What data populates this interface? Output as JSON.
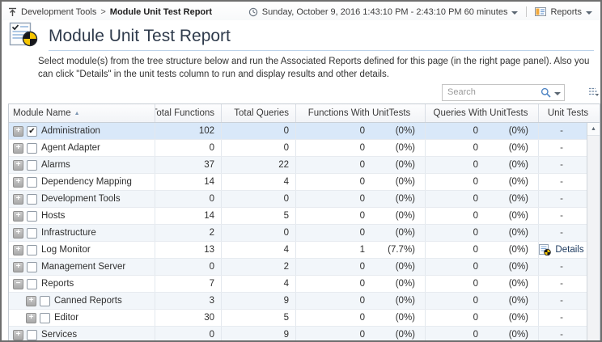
{
  "breadcrumb": {
    "parent": "Development Tools",
    "separator": ">",
    "current": "Module Unit Test Report"
  },
  "timebar": {
    "range": "Sunday, October 9, 2016 1:43:10 PM - 2:43:10 PM 60 minutes",
    "reports_label": "Reports"
  },
  "header": {
    "title": "Module Unit Test Report",
    "description": "Select module(s) from the tree structure below and run the Associated Reports defined for this page (in the right page panel). Also you can click \"Details\" in the unit tests column to run and display results and other details."
  },
  "search": {
    "placeholder": "Search"
  },
  "icons": {
    "sort_asc": "▲",
    "scroll_up": "▲",
    "check": "✔",
    "expand_collapsed": "+",
    "expand_expanded": "−",
    "dropdown": "▼"
  },
  "colors": {
    "title_color": "#2f3b4c",
    "divider_blue": "#bdd3ea",
    "selected_row": "#d9e8f9",
    "alt_row": "#f2f6fa",
    "link_color": "#1d3a5f",
    "accent_blue": "#4d83c3",
    "pie_yellow": "#f5c400",
    "pie_black": "#17181a"
  },
  "table": {
    "columns": [
      {
        "label": "Module Name",
        "align": "left",
        "sorted": "asc"
      },
      {
        "label": "Total Functions",
        "align": "right"
      },
      {
        "label": "Total Queries",
        "align": "right"
      },
      {
        "label": "Functions With UnitTests",
        "align": "center"
      },
      {
        "label": "Queries With UnitTests",
        "align": "center"
      },
      {
        "label": "Unit Tests",
        "align": "center"
      }
    ],
    "rows": [
      {
        "name": "Administration",
        "level": 0,
        "expanded": false,
        "checked": true,
        "selected": true,
        "tf": "102",
        "tq": "0",
        "fwu": "0",
        "fwu_pct": "(0%)",
        "qwu": "0",
        "qwu_pct": "(0%)",
        "unit_tests": "-",
        "details": false
      },
      {
        "name": "Agent Adapter",
        "level": 0,
        "expanded": false,
        "checked": false,
        "selected": false,
        "tf": "0",
        "tq": "0",
        "fwu": "0",
        "fwu_pct": "(0%)",
        "qwu": "0",
        "qwu_pct": "(0%)",
        "unit_tests": "-",
        "details": false
      },
      {
        "name": "Alarms",
        "level": 0,
        "expanded": false,
        "checked": false,
        "selected": false,
        "tf": "37",
        "tq": "22",
        "fwu": "0",
        "fwu_pct": "(0%)",
        "qwu": "0",
        "qwu_pct": "(0%)",
        "unit_tests": "-",
        "details": false
      },
      {
        "name": "Dependency Mapping",
        "level": 0,
        "expanded": false,
        "checked": false,
        "selected": false,
        "tf": "14",
        "tq": "4",
        "fwu": "0",
        "fwu_pct": "(0%)",
        "qwu": "0",
        "qwu_pct": "(0%)",
        "unit_tests": "-",
        "details": false
      },
      {
        "name": "Development Tools",
        "level": 0,
        "expanded": false,
        "checked": false,
        "selected": false,
        "tf": "0",
        "tq": "0",
        "fwu": "0",
        "fwu_pct": "(0%)",
        "qwu": "0",
        "qwu_pct": "(0%)",
        "unit_tests": "-",
        "details": false
      },
      {
        "name": "Hosts",
        "level": 0,
        "expanded": false,
        "checked": false,
        "selected": false,
        "tf": "14",
        "tq": "5",
        "fwu": "0",
        "fwu_pct": "(0%)",
        "qwu": "0",
        "qwu_pct": "(0%)",
        "unit_tests": "-",
        "details": false
      },
      {
        "name": "Infrastructure",
        "level": 0,
        "expanded": false,
        "checked": false,
        "selected": false,
        "tf": "2",
        "tq": "0",
        "fwu": "0",
        "fwu_pct": "(0%)",
        "qwu": "0",
        "qwu_pct": "(0%)",
        "unit_tests": "-",
        "details": false
      },
      {
        "name": "Log Monitor",
        "level": 0,
        "expanded": false,
        "checked": false,
        "selected": false,
        "tf": "13",
        "tq": "4",
        "fwu": "1",
        "fwu_pct": "(7.7%)",
        "qwu": "0",
        "qwu_pct": "(0%)",
        "unit_tests": "Details",
        "details": true
      },
      {
        "name": "Management Server",
        "level": 0,
        "expanded": false,
        "checked": false,
        "selected": false,
        "tf": "0",
        "tq": "2",
        "fwu": "0",
        "fwu_pct": "(0%)",
        "qwu": "0",
        "qwu_pct": "(0%)",
        "unit_tests": "-",
        "details": false
      },
      {
        "name": "Reports",
        "level": 0,
        "expanded": true,
        "checked": false,
        "selected": false,
        "tf": "7",
        "tq": "4",
        "fwu": "0",
        "fwu_pct": "(0%)",
        "qwu": "0",
        "qwu_pct": "(0%)",
        "unit_tests": "-",
        "details": false
      },
      {
        "name": "Canned Reports",
        "level": 1,
        "expanded": false,
        "checked": false,
        "selected": false,
        "tf": "3",
        "tq": "9",
        "fwu": "0",
        "fwu_pct": "(0%)",
        "qwu": "0",
        "qwu_pct": "(0%)",
        "unit_tests": "-",
        "details": false
      },
      {
        "name": "Editor",
        "level": 1,
        "expanded": false,
        "checked": false,
        "selected": false,
        "tf": "30",
        "tq": "5",
        "fwu": "0",
        "fwu_pct": "(0%)",
        "qwu": "0",
        "qwu_pct": "(0%)",
        "unit_tests": "-",
        "details": false
      },
      {
        "name": "Services",
        "level": 0,
        "expanded": false,
        "checked": false,
        "selected": false,
        "tf": "0",
        "tq": "9",
        "fwu": "0",
        "fwu_pct": "(0%)",
        "qwu": "0",
        "qwu_pct": "(0%)",
        "unit_tests": "-",
        "details": false
      }
    ]
  }
}
